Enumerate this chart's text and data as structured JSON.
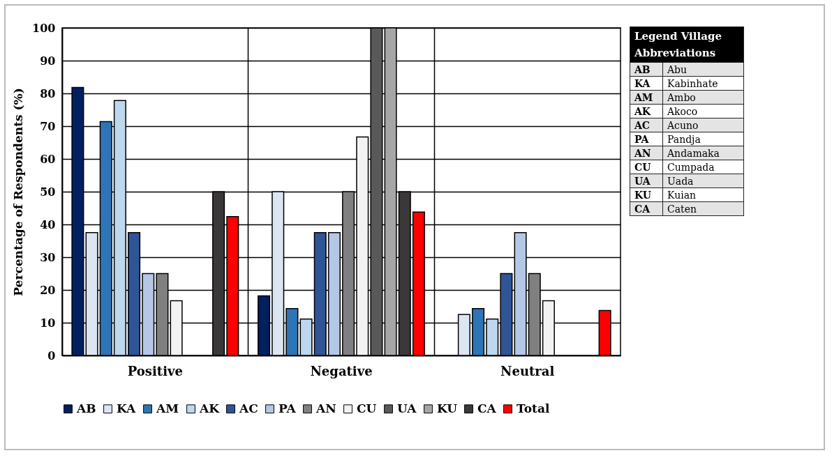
{
  "chart_data": {
    "type": "bar",
    "ylabel": "Percentage of Respondents (%)",
    "categories": [
      "Positive",
      "Negative",
      "Neutral"
    ],
    "series": [
      {
        "name": "AB",
        "color": "#002060",
        "values": [
          81.8,
          18.2,
          0
        ]
      },
      {
        "name": "KA",
        "color": "#dce6f2",
        "values": [
          37.5,
          50,
          12.5
        ]
      },
      {
        "name": "AM",
        "color": "#2e75b6",
        "values": [
          71.4,
          14.3,
          14.3
        ]
      },
      {
        "name": "AK",
        "color": "#bdd7ee",
        "values": [
          77.8,
          11.1,
          11.1
        ]
      },
      {
        "name": "AC",
        "color": "#2f5597",
        "values": [
          37.5,
          37.5,
          25
        ]
      },
      {
        "name": "PA",
        "color": "#b4c7e7",
        "values": [
          25,
          37.5,
          37.5
        ]
      },
      {
        "name": "AN",
        "color": "#808080",
        "values": [
          25,
          50,
          25
        ]
      },
      {
        "name": "CU",
        "color": "#f2f2f2",
        "values": [
          16.7,
          66.7,
          16.7
        ]
      },
      {
        "name": "UA",
        "color": "#595959",
        "values": [
          0,
          100,
          0
        ]
      },
      {
        "name": "KU",
        "color": "#a6a6a6",
        "values": [
          0,
          100,
          0
        ]
      },
      {
        "name": "CA",
        "color": "#3a3838",
        "values": [
          50,
          50,
          0
        ]
      },
      {
        "name": "Total",
        "color": "#ff0000",
        "values": [
          42.4,
          43.8,
          13.7
        ]
      }
    ],
    "ylim": [
      0,
      100
    ],
    "yticks": [
      0,
      10,
      20,
      30,
      40,
      50,
      60,
      70,
      80,
      90,
      100
    ],
    "grid": true,
    "legend": "bottom",
    "annotations": [
      "Legend Village Abbreviations",
      "AB Abu",
      "KA Kabinhate",
      "AM Ambo",
      "AK Akoco",
      "AC Acuno",
      "PA Pandja",
      "AN Andamaka",
      "CU Cumpada",
      "UA Uada",
      "KU Kuian",
      "CA Caten"
    ]
  }
}
